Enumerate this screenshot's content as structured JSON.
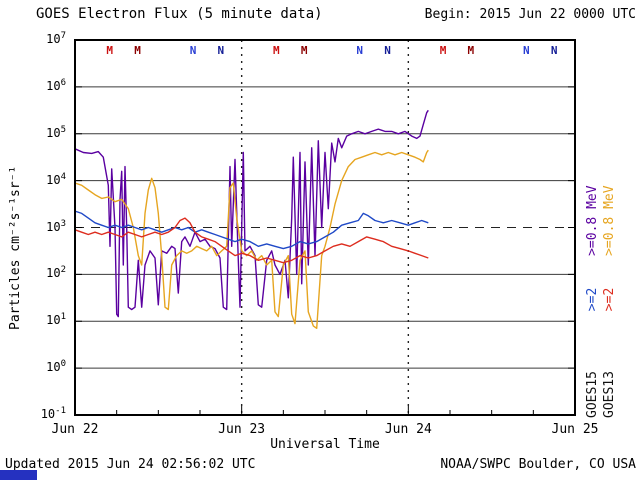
{
  "header": {
    "title": "GOES Electron Flux (5 minute data)",
    "begin_label": "Begin: 2015 Jun 22 0000 UTC"
  },
  "footer": {
    "updated": "Updated 2015 Jun 24 02:56:02 UTC",
    "source": "NOAA/SWPC Boulder, CO USA"
  },
  "legend": {
    "goes15": {
      "sat": "GOES15",
      "ge2": ">=2",
      "ge08": ">=0.8 MeV",
      "sat_color": "#111111",
      "ge2_color": "#1f49c7",
      "ge08_color": "#5a00a0"
    },
    "goes13": {
      "sat": "GOES13",
      "ge2": ">=2",
      "ge08": ">=0.8 MeV",
      "sat_color": "#111111",
      "ge2_color": "#dd2c1e",
      "ge08_color": "#e6a520"
    }
  },
  "chart_data": {
    "type": "line",
    "title": "GOES Electron Flux (5 minute data)",
    "xlabel": "Universal Time",
    "ylabel": "Particles cm⁻²s⁻¹sr⁻¹",
    "x_range_days": [
      0,
      3
    ],
    "x_tick_days": [
      0,
      1,
      2,
      3
    ],
    "x_tick_labels": [
      "Jun 22",
      "Jun 23",
      "Jun 24",
      "Jun 25"
    ],
    "y_log_range": [
      -1,
      7
    ],
    "y_tick_exponents": [
      -1,
      0,
      1,
      2,
      3,
      4,
      5,
      6,
      7
    ],
    "threshold_log": 3,
    "vertical_dotted_days": [
      1,
      2
    ],
    "grid": true,
    "legend_position": "right-rotated",
    "top_markers": [
      {
        "label": "M",
        "t": 0.208,
        "color": "#cc1111"
      },
      {
        "label": "M",
        "t": 0.375,
        "color": "#8b0000"
      },
      {
        "label": "N",
        "t": 0.708,
        "color": "#2a3fd4"
      },
      {
        "label": "N",
        "t": 0.875,
        "color": "#141e96"
      },
      {
        "label": "M",
        "t": 1.208,
        "color": "#cc1111"
      },
      {
        "label": "M",
        "t": 1.375,
        "color": "#8b0000"
      },
      {
        "label": "N",
        "t": 1.708,
        "color": "#2a3fd4"
      },
      {
        "label": "N",
        "t": 1.875,
        "color": "#141e96"
      },
      {
        "label": "M",
        "t": 2.208,
        "color": "#cc1111"
      },
      {
        "label": "M",
        "t": 2.375,
        "color": "#8b0000"
      },
      {
        "label": "N",
        "t": 2.708,
        "color": "#2a3fd4"
      },
      {
        "label": "N",
        "t": 2.875,
        "color": "#141e96"
      }
    ],
    "series": [
      {
        "name": "GOES15 >=0.8 MeV",
        "color": "#5a00a0",
        "points": [
          [
            0,
            4.68
          ],
          [
            0.05,
            4.6
          ],
          [
            0.1,
            4.58
          ],
          [
            0.14,
            4.62
          ],
          [
            0.17,
            4.5
          ],
          [
            0.2,
            3.9
          ],
          [
            0.21,
            2.6
          ],
          [
            0.22,
            4.25
          ],
          [
            0.24,
            3.0
          ],
          [
            0.25,
            1.15
          ],
          [
            0.26,
            1.1
          ],
          [
            0.27,
            3.6
          ],
          [
            0.28,
            4.2
          ],
          [
            0.29,
            2.2
          ],
          [
            0.3,
            4.3
          ],
          [
            0.31,
            3.0
          ],
          [
            0.32,
            1.3
          ],
          [
            0.34,
            1.25
          ],
          [
            0.36,
            1.3
          ],
          [
            0.38,
            2.3
          ],
          [
            0.4,
            1.3
          ],
          [
            0.42,
            2.2
          ],
          [
            0.45,
            2.5
          ],
          [
            0.48,
            2.35
          ],
          [
            0.5,
            1.35
          ],
          [
            0.52,
            2.5
          ],
          [
            0.55,
            2.45
          ],
          [
            0.58,
            2.6
          ],
          [
            0.6,
            2.55
          ],
          [
            0.62,
            1.6
          ],
          [
            0.64,
            2.7
          ],
          [
            0.66,
            2.8
          ],
          [
            0.69,
            2.6
          ],
          [
            0.72,
            2.9
          ],
          [
            0.75,
            2.7
          ],
          [
            0.78,
            2.75
          ],
          [
            0.81,
            2.6
          ],
          [
            0.84,
            2.55
          ],
          [
            0.87,
            2.35
          ],
          [
            0.89,
            1.3
          ],
          [
            0.91,
            1.25
          ],
          [
            0.93,
            4.3
          ],
          [
            0.94,
            2.6
          ],
          [
            0.96,
            4.45
          ],
          [
            0.98,
            2.3
          ],
          [
            0.99,
            1.3
          ],
          [
            1.01,
            4.6
          ],
          [
            1.02,
            2.5
          ],
          [
            1.05,
            2.6
          ],
          [
            1.08,
            2.4
          ],
          [
            1.1,
            1.35
          ],
          [
            1.12,
            1.3
          ],
          [
            1.15,
            2.3
          ],
          [
            1.18,
            2.5
          ],
          [
            1.2,
            2.2
          ],
          [
            1.23,
            2.0
          ],
          [
            1.26,
            2.3
          ],
          [
            1.28,
            1.5
          ],
          [
            1.3,
            3.2
          ],
          [
            1.31,
            4.5
          ],
          [
            1.33,
            2.0
          ],
          [
            1.35,
            4.6
          ],
          [
            1.36,
            1.8
          ],
          [
            1.38,
            4.4
          ],
          [
            1.4,
            2.2
          ],
          [
            1.42,
            4.7
          ],
          [
            1.44,
            2.4
          ],
          [
            1.46,
            4.85
          ],
          [
            1.48,
            3.0
          ],
          [
            1.5,
            4.6
          ],
          [
            1.52,
            3.4
          ],
          [
            1.54,
            4.8
          ],
          [
            1.56,
            4.4
          ],
          [
            1.58,
            4.9
          ],
          [
            1.6,
            4.7
          ],
          [
            1.63,
            4.95
          ],
          [
            1.66,
            5.0
          ],
          [
            1.7,
            5.05
          ],
          [
            1.74,
            5.0
          ],
          [
            1.78,
            5.05
          ],
          [
            1.82,
            5.1
          ],
          [
            1.86,
            5.05
          ],
          [
            1.9,
            5.05
          ],
          [
            1.94,
            5.0
          ],
          [
            1.98,
            5.05
          ],
          [
            2.02,
            4.95
          ],
          [
            2.05,
            4.9
          ],
          [
            2.07,
            4.95
          ],
          [
            2.09,
            5.2
          ],
          [
            2.11,
            5.45
          ],
          [
            2.12,
            5.5
          ]
        ]
      },
      {
        "name": "GOES13 >=0.8 MeV",
        "color": "#e6a520",
        "points": [
          [
            0,
            3.95
          ],
          [
            0.04,
            3.9
          ],
          [
            0.08,
            3.8
          ],
          [
            0.12,
            3.7
          ],
          [
            0.16,
            3.62
          ],
          [
            0.2,
            3.65
          ],
          [
            0.24,
            3.55
          ],
          [
            0.28,
            3.6
          ],
          [
            0.32,
            3.4
          ],
          [
            0.35,
            3.0
          ],
          [
            0.38,
            2.4
          ],
          [
            0.4,
            2.2
          ],
          [
            0.42,
            3.3
          ],
          [
            0.44,
            3.8
          ],
          [
            0.46,
            4.05
          ],
          [
            0.48,
            3.85
          ],
          [
            0.5,
            3.3
          ],
          [
            0.52,
            2.4
          ],
          [
            0.54,
            1.3
          ],
          [
            0.56,
            1.25
          ],
          [
            0.58,
            2.2
          ],
          [
            0.61,
            2.4
          ],
          [
            0.64,
            2.5
          ],
          [
            0.67,
            2.45
          ],
          [
            0.7,
            2.5
          ],
          [
            0.73,
            2.6
          ],
          [
            0.76,
            2.55
          ],
          [
            0.79,
            2.5
          ],
          [
            0.82,
            2.6
          ],
          [
            0.85,
            2.4
          ],
          [
            0.88,
            2.5
          ],
          [
            0.91,
            2.6
          ],
          [
            0.93,
            3.85
          ],
          [
            0.95,
            3.95
          ],
          [
            0.97,
            3.2
          ],
          [
            1.0,
            2.5
          ],
          [
            1.03,
            2.4
          ],
          [
            1.06,
            2.5
          ],
          [
            1.09,
            2.3
          ],
          [
            1.12,
            2.4
          ],
          [
            1.15,
            2.2
          ],
          [
            1.18,
            2.3
          ],
          [
            1.2,
            1.2
          ],
          [
            1.22,
            1.1
          ],
          [
            1.25,
            2.2
          ],
          [
            1.28,
            2.4
          ],
          [
            1.3,
            1.15
          ],
          [
            1.32,
            0.95
          ],
          [
            1.35,
            2.3
          ],
          [
            1.38,
            2.5
          ],
          [
            1.4,
            1.2
          ],
          [
            1.43,
            0.9
          ],
          [
            1.45,
            0.85
          ],
          [
            1.48,
            2.4
          ],
          [
            1.5,
            2.6
          ],
          [
            1.53,
            3.0
          ],
          [
            1.56,
            3.5
          ],
          [
            1.6,
            4.0
          ],
          [
            1.64,
            4.3
          ],
          [
            1.68,
            4.45
          ],
          [
            1.72,
            4.5
          ],
          [
            1.76,
            4.55
          ],
          [
            1.8,
            4.6
          ],
          [
            1.84,
            4.55
          ],
          [
            1.88,
            4.6
          ],
          [
            1.92,
            4.55
          ],
          [
            1.96,
            4.6
          ],
          [
            2.0,
            4.55
          ],
          [
            2.04,
            4.5
          ],
          [
            2.07,
            4.45
          ],
          [
            2.09,
            4.4
          ],
          [
            2.11,
            4.6
          ],
          [
            2.12,
            4.65
          ]
        ]
      },
      {
        "name": "GOES15 >=2 MeV",
        "color": "#1f49c7",
        "points": [
          [
            0,
            3.35
          ],
          [
            0.04,
            3.3
          ],
          [
            0.08,
            3.2
          ],
          [
            0.12,
            3.1
          ],
          [
            0.16,
            3.05
          ],
          [
            0.2,
            3.0
          ],
          [
            0.24,
            3.05
          ],
          [
            0.28,
            3.0
          ],
          [
            0.32,
            3.05
          ],
          [
            0.36,
            3.0
          ],
          [
            0.4,
            2.95
          ],
          [
            0.44,
            3.0
          ],
          [
            0.48,
            2.95
          ],
          [
            0.52,
            2.9
          ],
          [
            0.56,
            2.95
          ],
          [
            0.6,
            3.0
          ],
          [
            0.64,
            2.95
          ],
          [
            0.68,
            3.0
          ],
          [
            0.72,
            2.9
          ],
          [
            0.76,
            2.95
          ],
          [
            0.8,
            2.9
          ],
          [
            0.84,
            2.85
          ],
          [
            0.88,
            2.8
          ],
          [
            0.92,
            2.75
          ],
          [
            0.96,
            2.7
          ],
          [
            1.0,
            2.75
          ],
          [
            1.05,
            2.7
          ],
          [
            1.1,
            2.6
          ],
          [
            1.15,
            2.65
          ],
          [
            1.2,
            2.6
          ],
          [
            1.25,
            2.55
          ],
          [
            1.3,
            2.6
          ],
          [
            1.35,
            2.7
          ],
          [
            1.4,
            2.65
          ],
          [
            1.45,
            2.7
          ],
          [
            1.5,
            2.8
          ],
          [
            1.55,
            2.9
          ],
          [
            1.6,
            3.05
          ],
          [
            1.65,
            3.1
          ],
          [
            1.7,
            3.15
          ],
          [
            1.73,
            3.3
          ],
          [
            1.76,
            3.25
          ],
          [
            1.8,
            3.15
          ],
          [
            1.85,
            3.1
          ],
          [
            1.9,
            3.15
          ],
          [
            1.95,
            3.1
          ],
          [
            2.0,
            3.05
          ],
          [
            2.04,
            3.1
          ],
          [
            2.08,
            3.15
          ],
          [
            2.12,
            3.1
          ]
        ]
      },
      {
        "name": "GOES13 >=2 MeV",
        "color": "#dd2c1e",
        "points": [
          [
            0,
            2.95
          ],
          [
            0.04,
            2.9
          ],
          [
            0.08,
            2.85
          ],
          [
            0.12,
            2.9
          ],
          [
            0.16,
            2.85
          ],
          [
            0.2,
            2.9
          ],
          [
            0.24,
            2.85
          ],
          [
            0.28,
            2.8
          ],
          [
            0.32,
            2.9
          ],
          [
            0.36,
            2.85
          ],
          [
            0.4,
            2.8
          ],
          [
            0.44,
            2.85
          ],
          [
            0.48,
            2.9
          ],
          [
            0.52,
            2.85
          ],
          [
            0.56,
            2.9
          ],
          [
            0.6,
            3.0
          ],
          [
            0.63,
            3.15
          ],
          [
            0.66,
            3.2
          ],
          [
            0.69,
            3.1
          ],
          [
            0.72,
            2.9
          ],
          [
            0.76,
            2.8
          ],
          [
            0.8,
            2.75
          ],
          [
            0.84,
            2.7
          ],
          [
            0.88,
            2.6
          ],
          [
            0.92,
            2.5
          ],
          [
            0.96,
            2.4
          ],
          [
            1.0,
            2.45
          ],
          [
            1.05,
            2.4
          ],
          [
            1.1,
            2.3
          ],
          [
            1.15,
            2.35
          ],
          [
            1.2,
            2.3
          ],
          [
            1.25,
            2.25
          ],
          [
            1.3,
            2.3
          ],
          [
            1.35,
            2.4
          ],
          [
            1.4,
            2.35
          ],
          [
            1.45,
            2.4
          ],
          [
            1.5,
            2.5
          ],
          [
            1.55,
            2.6
          ],
          [
            1.6,
            2.65
          ],
          [
            1.65,
            2.6
          ],
          [
            1.7,
            2.7
          ],
          [
            1.75,
            2.8
          ],
          [
            1.8,
            2.75
          ],
          [
            1.85,
            2.7
          ],
          [
            1.9,
            2.6
          ],
          [
            1.95,
            2.55
          ],
          [
            2.0,
            2.5
          ],
          [
            2.04,
            2.45
          ],
          [
            2.08,
            2.4
          ],
          [
            2.12,
            2.35
          ]
        ]
      }
    ]
  }
}
